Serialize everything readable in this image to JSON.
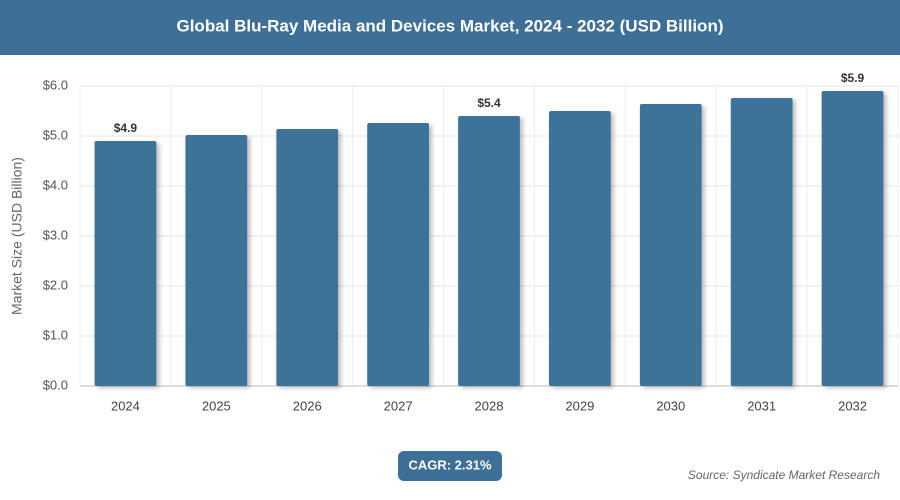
{
  "chart_data": {
    "type": "bar",
    "title": "Global Blu-Ray Media and Devices Market, 2024 - 2032 (USD Billion)",
    "y_label": "Market Size (USD Billion)",
    "categories": [
      "2024",
      "2025",
      "2026",
      "2027",
      "2028",
      "2029",
      "2030",
      "2031",
      "2032"
    ],
    "values": [
      4.9,
      5.02,
      5.14,
      5.26,
      5.4,
      5.5,
      5.64,
      5.76,
      5.9
    ],
    "value_labels": [
      "$4.9",
      null,
      null,
      null,
      "$5.4",
      null,
      null,
      null,
      "$5.9"
    ],
    "color": "#3e7399",
    "ylim": [
      0,
      6
    ],
    "yticks": [
      {
        "value": 0,
        "label": "$0.0"
      },
      {
        "value": 1,
        "label": "$1.0"
      },
      {
        "value": 2,
        "label": "$2.0"
      },
      {
        "value": 3,
        "label": "$3.0"
      },
      {
        "value": 4,
        "label": "$4.0"
      },
      {
        "value": 5,
        "label": "$5.0"
      },
      {
        "value": 6,
        "label": "$6.0"
      }
    ],
    "grid": true
  },
  "cagr": "CAGR: 2.31%",
  "source": "Source: Syndicate Market Research"
}
